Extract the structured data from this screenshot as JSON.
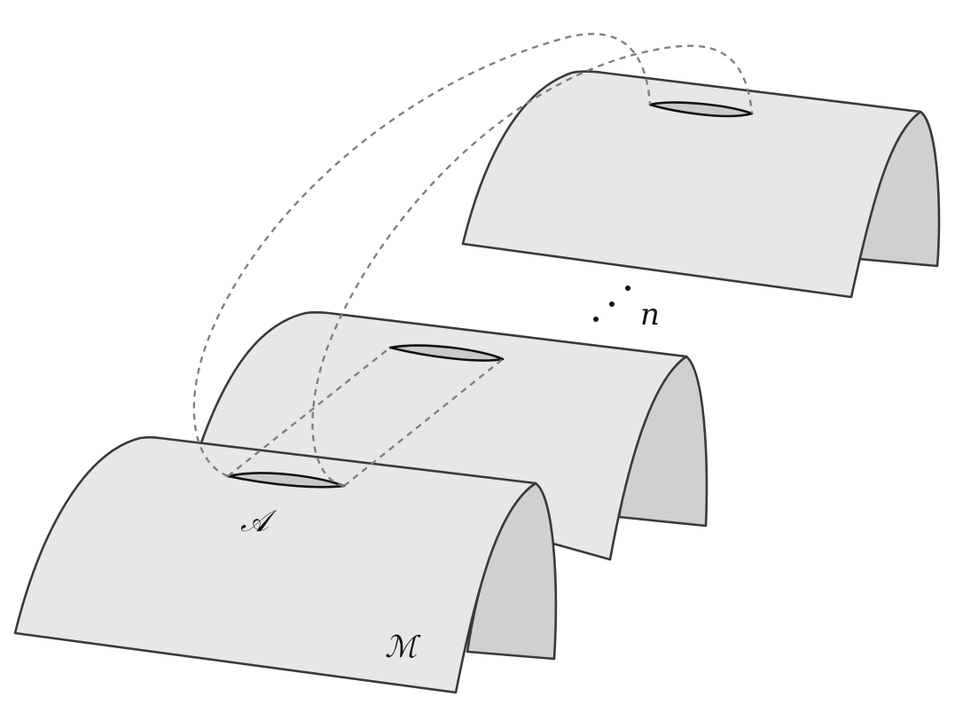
{
  "labels": {
    "region": "𝒜",
    "manifold": "ℳ",
    "replica_count": "n"
  },
  "colors": {
    "sheet_face": "#e6e7e9",
    "sheet_side": "#cfd0d2",
    "cut_fill": "#c9cacc",
    "outline": "#3a3a3a",
    "glue_lines": "#7d7d7d"
  }
}
